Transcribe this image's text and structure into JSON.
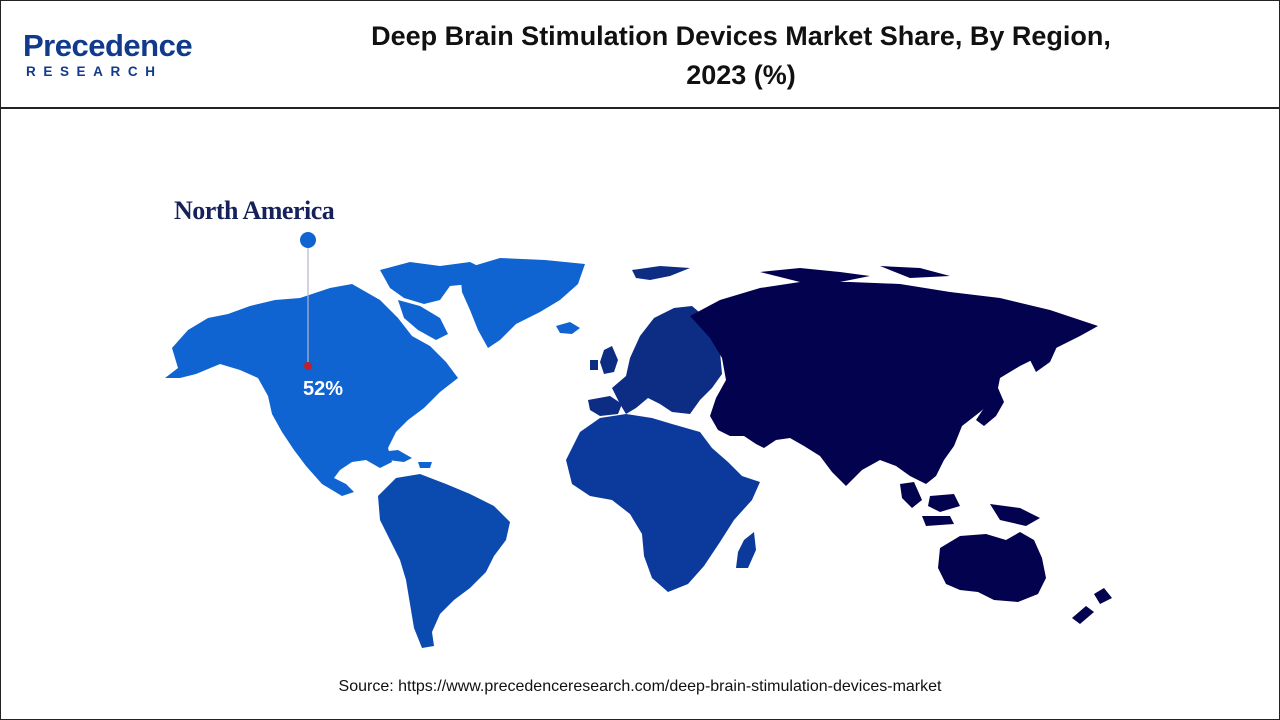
{
  "header": {
    "logo_top": "Precedence",
    "logo_bottom": "RESEARCH",
    "title_line1": "Deep Brain Stimulation Devices Market Share, By Region,",
    "title_line2": "2023 (%)"
  },
  "map": {
    "colors": {
      "north_america": "#0f64d2",
      "south_america": "#0b4bb0",
      "europe": "#0d2d84",
      "africa": "#0c3a9c",
      "asia_oceania": "#02024e",
      "callout_pin": "#0f64d2",
      "callout_marker": "#c0202a"
    },
    "callout": {
      "region": "North America",
      "share": "52%"
    }
  },
  "footer": {
    "source": "Source: https://www.precedenceresearch.com/deep-brain-stimulation-devices-market"
  }
}
